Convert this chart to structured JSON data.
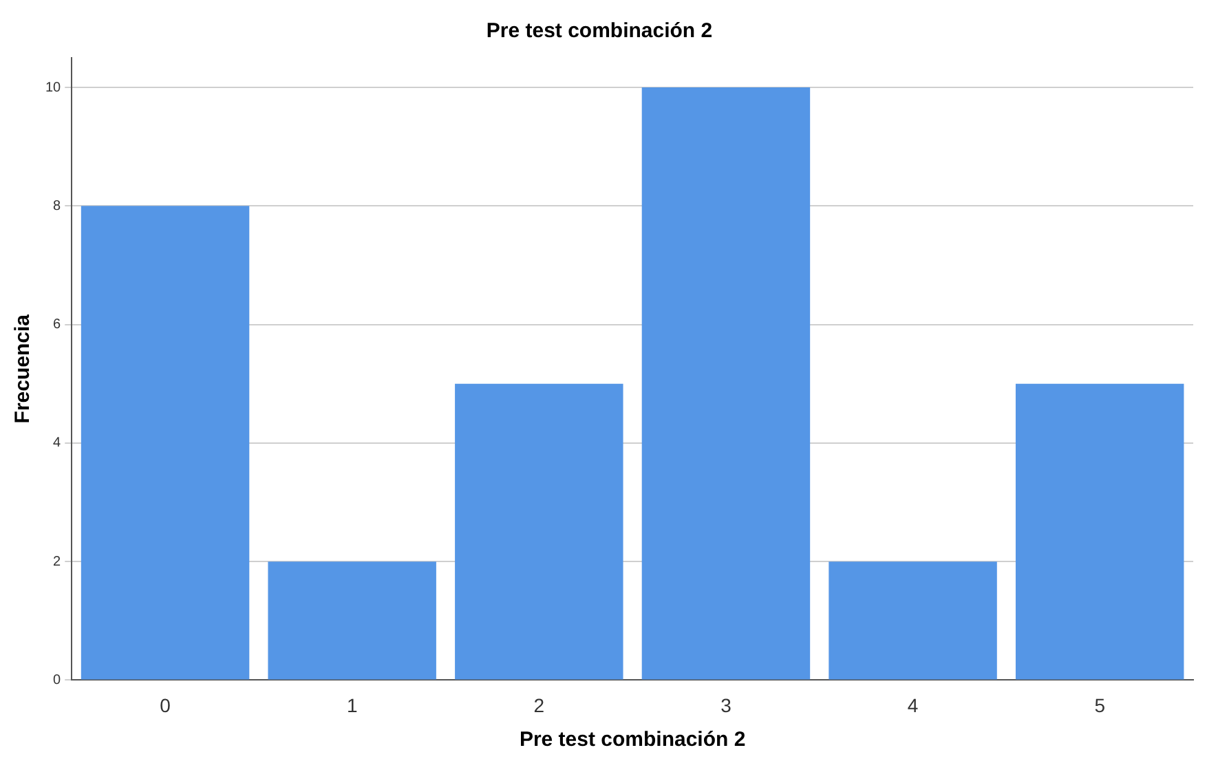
{
  "chart_data": {
    "type": "bar",
    "title": "Pre test combinación 2",
    "xlabel": "Pre test combinación 2",
    "ylabel": "Frecuencia",
    "categories": [
      "0",
      "1",
      "2",
      "3",
      "4",
      "5"
    ],
    "values": [
      8,
      2,
      5,
      10,
      2,
      5
    ],
    "color": "#5596e6",
    "ylim": [
      0,
      10.5
    ],
    "yticks": [
      0,
      2,
      4,
      6,
      8,
      10
    ],
    "grid": "y",
    "legend": false
  }
}
